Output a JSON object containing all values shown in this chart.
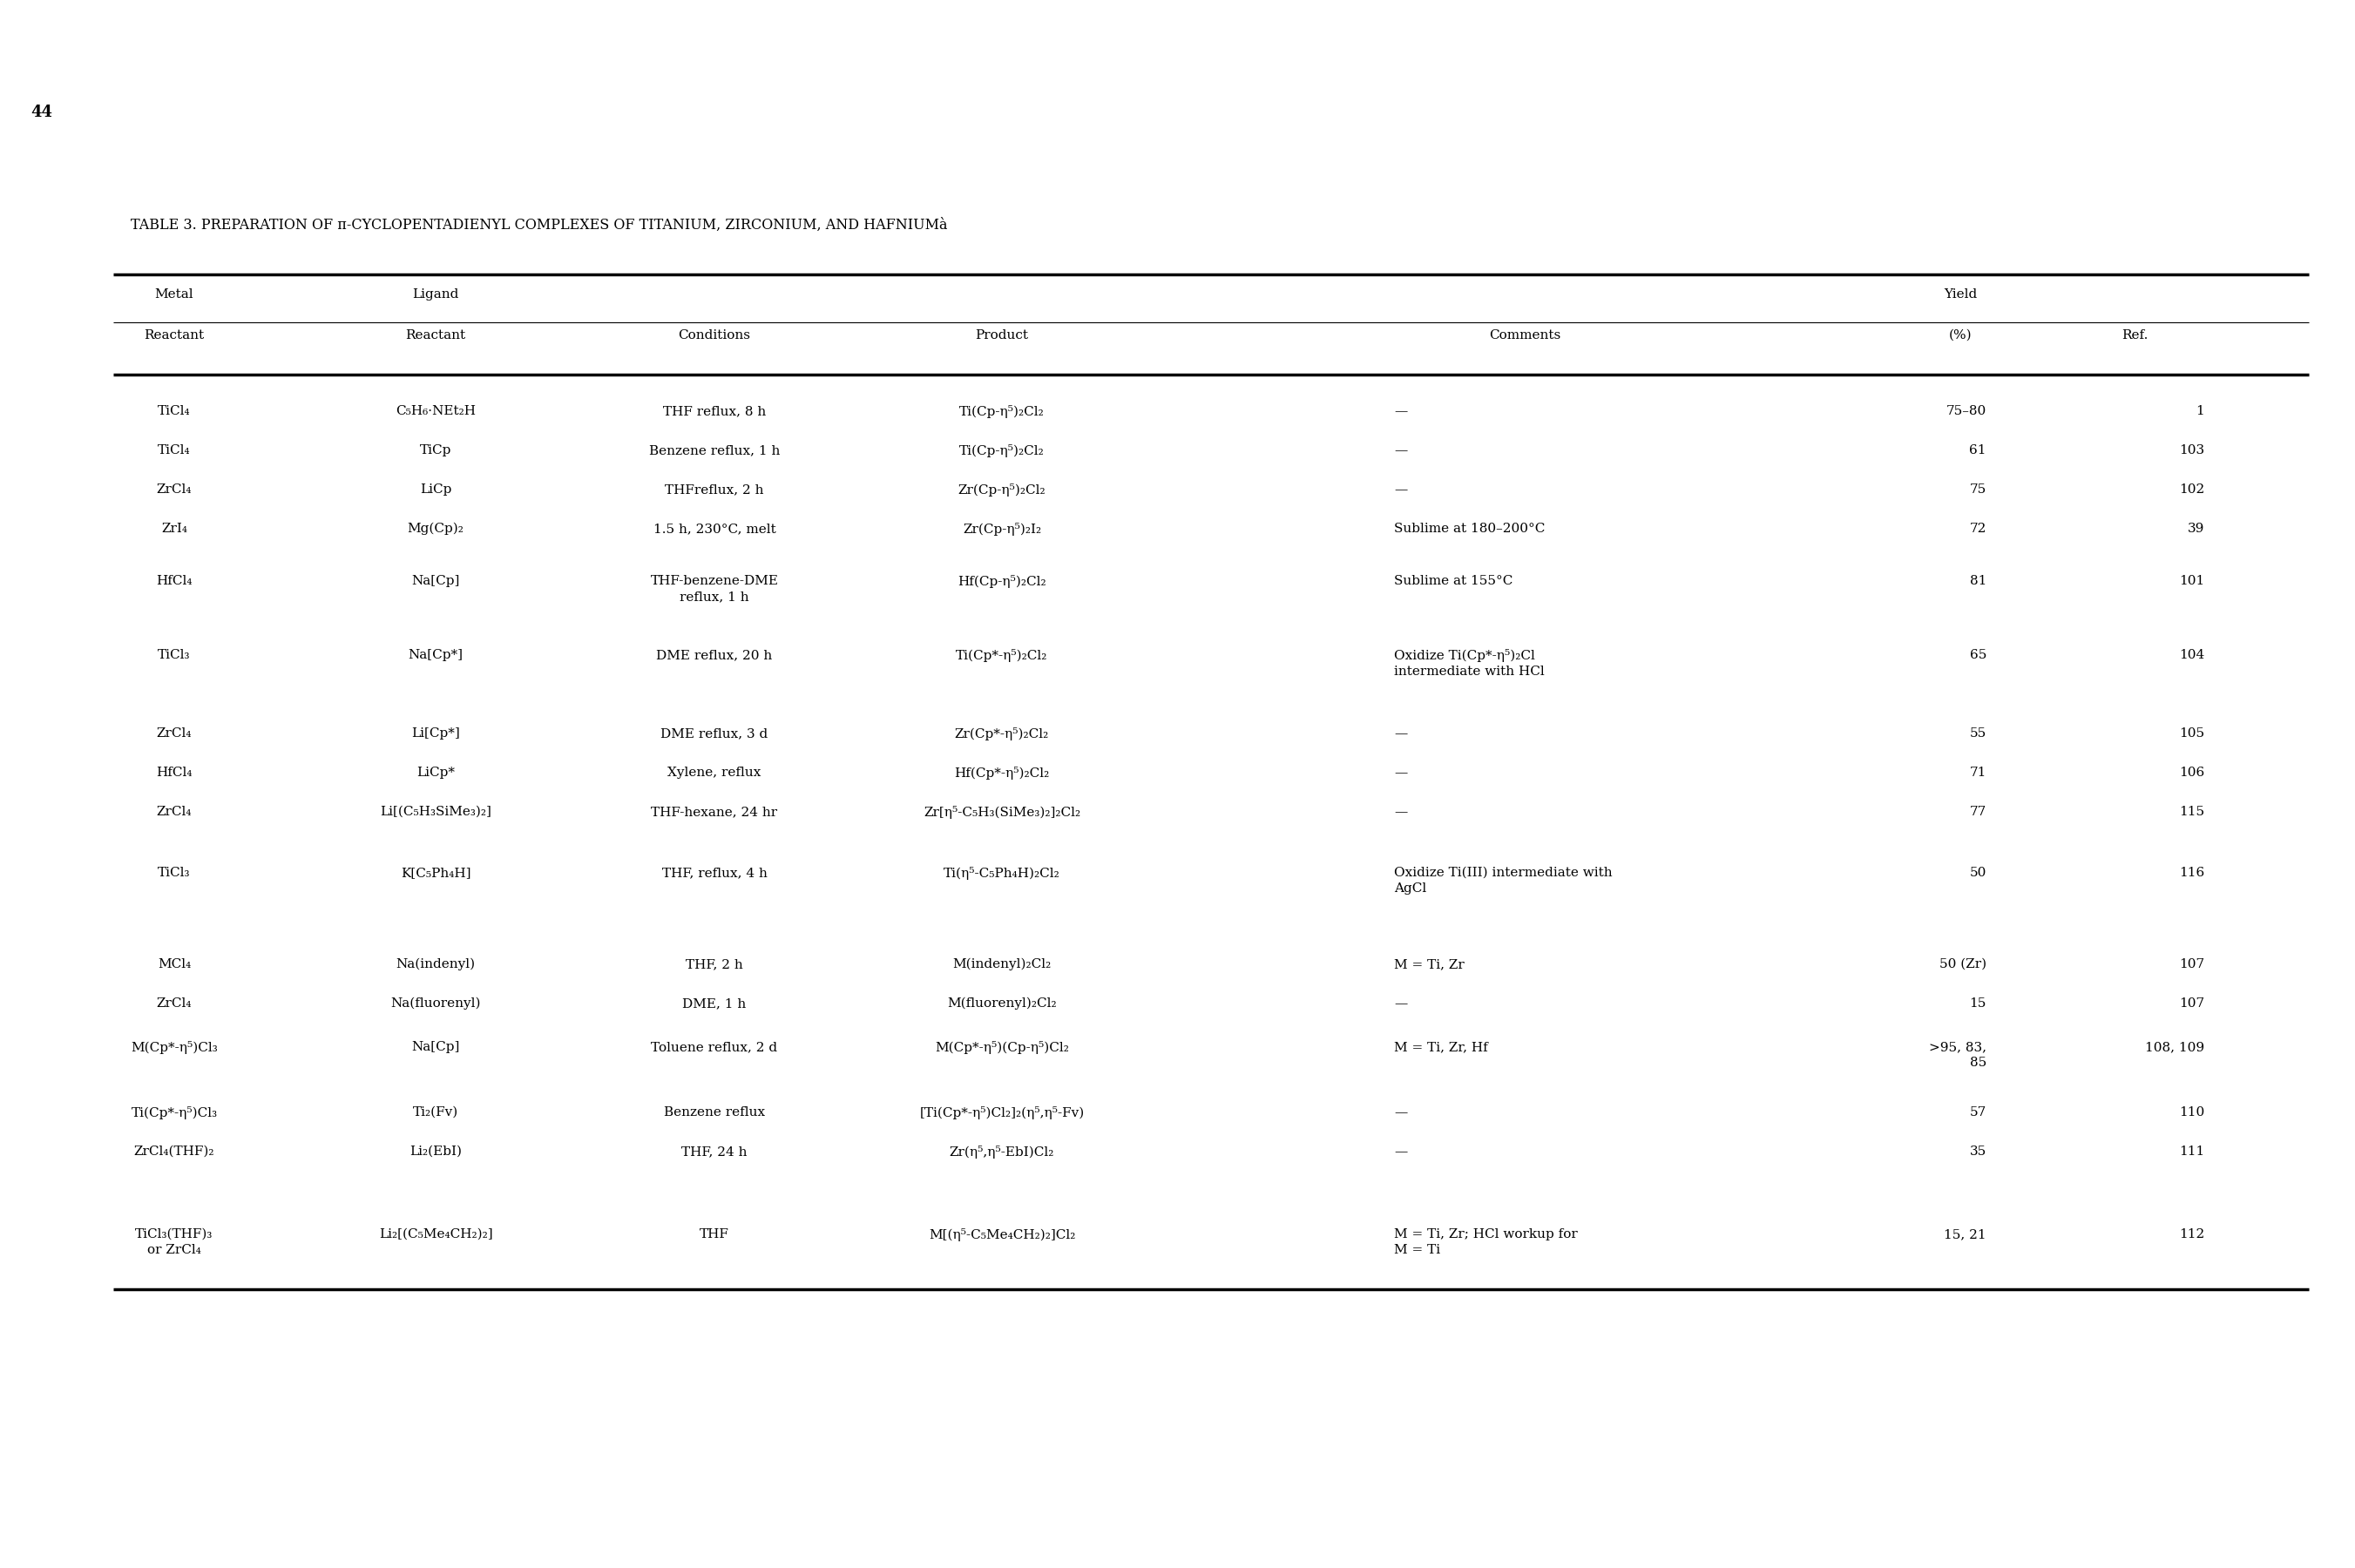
{
  "title": "TABLE 3. PREPARATION OF π-CYCLOPENTADIENYL COMPLEXES OF TITANIUM, ZIRCONIUM, AND HAFNIUMà",
  "page_number": "44",
  "col_headers": [
    [
      "Metal",
      "Ligand",
      "",
      "",
      "",
      "Yield",
      ""
    ],
    [
      "Reactant",
      "Reactant",
      "Conditions",
      "Product",
      "Comments",
      "(%)",
      "Ref."
    ]
  ],
  "rows": [
    [
      "TiCl₄",
      "C₅H₆·NEt₂H",
      "THF reflux, 8 h",
      "Ti(Cp-η⁵)₂Cl₂",
      "—",
      "75–80",
      "1"
    ],
    [
      "TiCl₄",
      "TiCp",
      "Benzene reflux, 1 h",
      "Ti(Cp-η⁵)₂Cl₂",
      "—",
      "61",
      "103"
    ],
    [
      "ZrCl₄",
      "LiCp",
      "THFreflux, 2 h",
      "Zr(Cp-η⁵)₂Cl₂",
      "—",
      "75",
      "102"
    ],
    [
      "ZrI₄",
      "Mg(Cp)₂",
      "1.5 h, 230°C, melt",
      "Zr(Cp-η⁵)₂I₂",
      "Sublime at 180–200°C",
      "72",
      "39"
    ],
    [
      "HfCl₄",
      "Na[Cp]",
      "THF-benzene-DME\nreflux, 1 h",
      "Hf(Cp-η⁵)₂Cl₂",
      "Sublime at 155°C",
      "81",
      "101"
    ],
    [
      "TiCl₃",
      "Na[Cp*]",
      "DME reflux, 20 h",
      "Ti(Cp*-η⁵)₂Cl₂",
      "Oxidize Ti(Cp*-η⁵)₂Cl\nintermediate with HCl",
      "65",
      "104"
    ],
    [
      "ZrCl₄",
      "Li[Cp*]",
      "DME reflux, 3 d",
      "Zr(Cp*-η⁵)₂Cl₂",
      "—",
      "55",
      "105"
    ],
    [
      "HfCl₄",
      "LiCp*",
      "Xylene, reflux",
      "Hf(Cp*-η⁵)₂Cl₂",
      "—",
      "71",
      "106"
    ],
    [
      "ZrCl₄",
      "Li[(C₅H₃SiMe₃)₂]",
      "THF-hexane, 24 hr",
      "Zr[η⁵-C₅H₃(SiMe₃)₂]₂Cl₂",
      "—",
      "77",
      "115"
    ],
    [
      "TiCl₃",
      "K[C₅Ph₄H]",
      "THF, reflux, 4 h",
      "Ti(η⁵-C₅Ph₄H)₂Cl₂",
      "Oxidize Ti(III) intermediate with\nAgCl",
      "50",
      "116"
    ],
    [
      "MCl₄",
      "Na(indenyl)",
      "THF, 2 h",
      "M(indenyl)₂Cl₂",
      "M = Ti, Zr",
      "50 (Zr)",
      "107"
    ],
    [
      "ZrCl₄",
      "Na(fluorenyl)",
      "DME, 1 h",
      "M(fluorenyl)₂Cl₂",
      "—",
      "15",
      "107"
    ],
    [
      "M(Cp*-η⁵)Cl₃",
      "Na[Cp]",
      "Toluene reflux, 2 d",
      "M(Cp*-η⁵)(Cp-η⁵)Cl₂",
      "M = Ti, Zr, Hf",
      ">95, 83,\n85",
      "108, 109"
    ],
    [
      "Ti(Cp*-η⁵)Cl₃",
      "Ti₂(Fv)",
      "Benzene reflux",
      "[Ti(Cp*-η⁵)Cl₂]₂(η⁵,η⁵-Fv)",
      "—",
      "57",
      "110"
    ],
    [
      "ZrCl₄(THF)₂",
      "Li₂(EbI)",
      "THF, 24 h",
      "Zr(η⁵,η⁵-EbI)Cl₂",
      "—",
      "35",
      "111"
    ],
    [
      "TiCl₃(THF)₃\nor ZrCl₄",
      "Li₂[(C₅Me₄CH₂)₂]",
      "THF",
      "M[(η⁵-C₅Me₄CH₂)₂]Cl₂",
      "M = Ti, Zr; HCl workup for\nM = Ti",
      "15, 21",
      "112"
    ]
  ],
  "background_color": "#ffffff",
  "text_color": "#000000"
}
